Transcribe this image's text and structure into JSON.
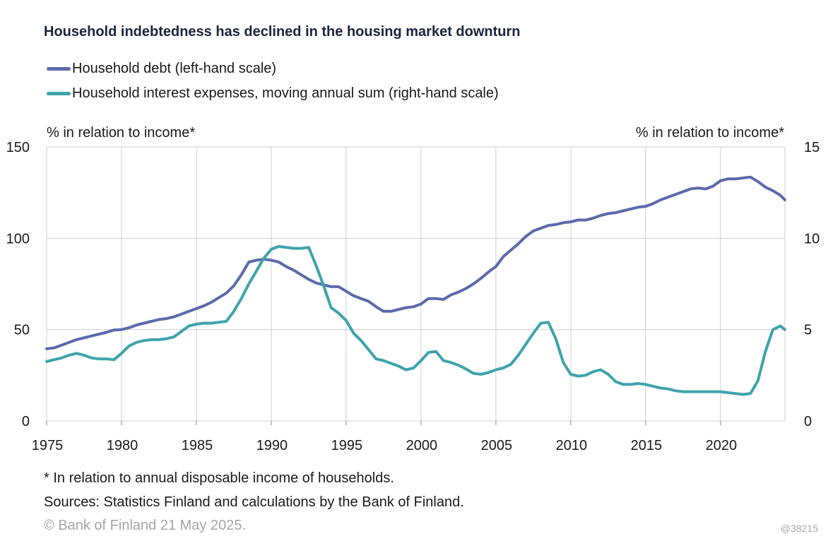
{
  "colors": {
    "debt": "#5b6aab",
    "interest": "#3fa3ab",
    "grid": "#d0d0d0"
  },
  "chart_data": {
    "type": "line",
    "title": "Household indebtedness has declined in the housing market downturn",
    "left_axis_label": "% in relation to income*",
    "right_axis_label": "% in relation to income*",
    "ylim_left": [
      0,
      150
    ],
    "ylim_right": [
      0,
      15
    ],
    "xlim": [
      1975,
      2024.3
    ],
    "grid": true,
    "legend_position": "top-left",
    "x_ticks": [
      "1975",
      "1980",
      "1985",
      "1990",
      "1995",
      "2000",
      "2005",
      "2010",
      "2015",
      "2020"
    ],
    "y_ticks_left": [
      "0",
      "50",
      "100",
      "150"
    ],
    "y_ticks_right": [
      "0",
      "5",
      "10",
      "15"
    ],
    "series": [
      {
        "name": "Household debt (left-hand scale)",
        "axis": "left",
        "color": "#5b6aab",
        "points": [
          [
            1975.0,
            39.5
          ],
          [
            1975.5,
            40
          ],
          [
            1976.0,
            41.5
          ],
          [
            1976.5,
            43
          ],
          [
            1977.0,
            44.5
          ],
          [
            1977.5,
            45.5
          ],
          [
            1978.0,
            46.5
          ],
          [
            1978.5,
            47.5
          ],
          [
            1979.0,
            48.5
          ],
          [
            1979.5,
            49.8
          ],
          [
            1980.0,
            50
          ],
          [
            1980.5,
            51
          ],
          [
            1981.0,
            52.5
          ],
          [
            1981.5,
            53.5
          ],
          [
            1982.0,
            54.5
          ],
          [
            1982.5,
            55.5
          ],
          [
            1983.0,
            56
          ],
          [
            1983.5,
            57
          ],
          [
            1984.0,
            58.5
          ],
          [
            1984.5,
            60
          ],
          [
            1985.0,
            61.5
          ],
          [
            1985.5,
            63
          ],
          [
            1986.0,
            65
          ],
          [
            1986.5,
            67.5
          ],
          [
            1987.0,
            70
          ],
          [
            1987.5,
            74
          ],
          [
            1988.0,
            80
          ],
          [
            1988.5,
            87
          ],
          [
            1989.0,
            88
          ],
          [
            1989.5,
            88.5
          ],
          [
            1990.0,
            88
          ],
          [
            1990.5,
            87
          ],
          [
            1991.0,
            84.5
          ],
          [
            1991.5,
            82.5
          ],
          [
            1992.0,
            80
          ],
          [
            1992.5,
            77.5
          ],
          [
            1993.0,
            75.5
          ],
          [
            1993.5,
            74.5
          ],
          [
            1994.0,
            73.5
          ],
          [
            1994.5,
            73.5
          ],
          [
            1995.0,
            71
          ],
          [
            1995.5,
            68.5
          ],
          [
            1996.0,
            67
          ],
          [
            1996.5,
            65.5
          ],
          [
            1997.0,
            62.5
          ],
          [
            1997.5,
            60
          ],
          [
            1998.0,
            60
          ],
          [
            1998.5,
            61
          ],
          [
            1999.0,
            62
          ],
          [
            1999.5,
            62.5
          ],
          [
            2000.0,
            64
          ],
          [
            2000.5,
            67
          ],
          [
            2001.0,
            67
          ],
          [
            2001.5,
            66.5
          ],
          [
            2002.0,
            69
          ],
          [
            2002.5,
            70.5
          ],
          [
            2003.0,
            72.5
          ],
          [
            2003.5,
            75
          ],
          [
            2004.0,
            78
          ],
          [
            2004.5,
            81.5
          ],
          [
            2005.0,
            84.5
          ],
          [
            2005.5,
            90
          ],
          [
            2006.0,
            93.5
          ],
          [
            2006.5,
            97
          ],
          [
            2007.0,
            101
          ],
          [
            2007.5,
            104
          ],
          [
            2008.0,
            105.5
          ],
          [
            2008.5,
            107
          ],
          [
            2009.0,
            107.5
          ],
          [
            2009.5,
            108.5
          ],
          [
            2010.0,
            109
          ],
          [
            2010.5,
            110
          ],
          [
            2011.0,
            110
          ],
          [
            2011.5,
            111
          ],
          [
            2012.0,
            112.5
          ],
          [
            2012.5,
            113.5
          ],
          [
            2013.0,
            114
          ],
          [
            2013.5,
            115
          ],
          [
            2014.0,
            116
          ],
          [
            2014.5,
            117
          ],
          [
            2015.0,
            117.5
          ],
          [
            2015.5,
            119
          ],
          [
            2016.0,
            121
          ],
          [
            2016.5,
            122.5
          ],
          [
            2017.0,
            124
          ],
          [
            2017.5,
            125.5
          ],
          [
            2018.0,
            127
          ],
          [
            2018.5,
            127.5
          ],
          [
            2019.0,
            127
          ],
          [
            2019.5,
            128.5
          ],
          [
            2020.0,
            131.5
          ],
          [
            2020.5,
            132.5
          ],
          [
            2021.0,
            132.5
          ],
          [
            2021.5,
            133
          ],
          [
            2022.0,
            133.5
          ],
          [
            2022.5,
            131
          ],
          [
            2023.0,
            128
          ],
          [
            2023.5,
            126
          ],
          [
            2024.0,
            123.5
          ],
          [
            2024.3,
            121
          ]
        ]
      },
      {
        "name": "Household interest expenses, moving annual sum (right-hand scale)",
        "axis": "right",
        "color": "#3fa3ab",
        "points": [
          [
            1975.0,
            3.25
          ],
          [
            1975.5,
            3.35
          ],
          [
            1976.0,
            3.45
          ],
          [
            1976.5,
            3.6
          ],
          [
            1977.0,
            3.7
          ],
          [
            1977.5,
            3.6
          ],
          [
            1978.0,
            3.45
          ],
          [
            1978.5,
            3.4
          ],
          [
            1979.0,
            3.4
          ],
          [
            1979.5,
            3.35
          ],
          [
            1980.0,
            3.7
          ],
          [
            1980.5,
            4.1
          ],
          [
            1981.0,
            4.3
          ],
          [
            1981.5,
            4.4
          ],
          [
            1982.0,
            4.45
          ],
          [
            1982.5,
            4.45
          ],
          [
            1983.0,
            4.5
          ],
          [
            1983.5,
            4.6
          ],
          [
            1984.0,
            4.9
          ],
          [
            1984.5,
            5.2
          ],
          [
            1985.0,
            5.3
          ],
          [
            1985.5,
            5.35
          ],
          [
            1986.0,
            5.35
          ],
          [
            1986.5,
            5.4
          ],
          [
            1987.0,
            5.45
          ],
          [
            1987.5,
            6.0
          ],
          [
            1988.0,
            6.7
          ],
          [
            1988.5,
            7.5
          ],
          [
            1989.0,
            8.2
          ],
          [
            1989.5,
            8.9
          ],
          [
            1990.0,
            9.4
          ],
          [
            1990.5,
            9.55
          ],
          [
            1991.0,
            9.5
          ],
          [
            1991.5,
            9.45
          ],
          [
            1992.0,
            9.45
          ],
          [
            1992.5,
            9.5
          ],
          [
            1993.0,
            8.5
          ],
          [
            1993.5,
            7.4
          ],
          [
            1994.0,
            6.2
          ],
          [
            1994.5,
            5.9
          ],
          [
            1995.0,
            5.5
          ],
          [
            1995.5,
            4.8
          ],
          [
            1996.0,
            4.4
          ],
          [
            1996.5,
            3.9
          ],
          [
            1997.0,
            3.4
          ],
          [
            1997.5,
            3.3
          ],
          [
            1998.0,
            3.15
          ],
          [
            1998.5,
            3.0
          ],
          [
            1999.0,
            2.8
          ],
          [
            1999.5,
            2.9
          ],
          [
            2000.0,
            3.3
          ],
          [
            2000.5,
            3.75
          ],
          [
            2001.0,
            3.8
          ],
          [
            2001.5,
            3.3
          ],
          [
            2002.0,
            3.2
          ],
          [
            2002.5,
            3.05
          ],
          [
            2003.0,
            2.85
          ],
          [
            2003.5,
            2.6
          ],
          [
            2004.0,
            2.55
          ],
          [
            2004.5,
            2.65
          ],
          [
            2005.0,
            2.8
          ],
          [
            2005.5,
            2.9
          ],
          [
            2006.0,
            3.1
          ],
          [
            2006.5,
            3.6
          ],
          [
            2007.0,
            4.2
          ],
          [
            2007.5,
            4.8
          ],
          [
            2008.0,
            5.35
          ],
          [
            2008.5,
            5.4
          ],
          [
            2009.0,
            4.5
          ],
          [
            2009.5,
            3.2
          ],
          [
            2010.0,
            2.55
          ],
          [
            2010.5,
            2.45
          ],
          [
            2011.0,
            2.5
          ],
          [
            2011.5,
            2.7
          ],
          [
            2012.0,
            2.8
          ],
          [
            2012.5,
            2.55
          ],
          [
            2013.0,
            2.15
          ],
          [
            2013.5,
            2.0
          ],
          [
            2014.0,
            2.0
          ],
          [
            2014.5,
            2.05
          ],
          [
            2015.0,
            2.0
          ],
          [
            2015.5,
            1.9
          ],
          [
            2016.0,
            1.8
          ],
          [
            2016.5,
            1.75
          ],
          [
            2017.0,
            1.65
          ],
          [
            2017.5,
            1.6
          ],
          [
            2018.0,
            1.6
          ],
          [
            2018.5,
            1.6
          ],
          [
            2019.0,
            1.6
          ],
          [
            2019.5,
            1.6
          ],
          [
            2020.0,
            1.6
          ],
          [
            2020.5,
            1.55
          ],
          [
            2021.0,
            1.5
          ],
          [
            2021.5,
            1.45
          ],
          [
            2022.0,
            1.5
          ],
          [
            2022.5,
            2.2
          ],
          [
            2023.0,
            3.8
          ],
          [
            2023.5,
            5.0
          ],
          [
            2024.0,
            5.2
          ],
          [
            2024.3,
            5.0
          ]
        ]
      }
    ]
  },
  "footnotes": {
    "note": "* In relation to annual disposable income of households.",
    "sources": "Sources: Statistics Finland and calculations by the Bank of Finland.",
    "copyright": "© Bank of Finland 21 May 2025.",
    "code": "@38215"
  }
}
